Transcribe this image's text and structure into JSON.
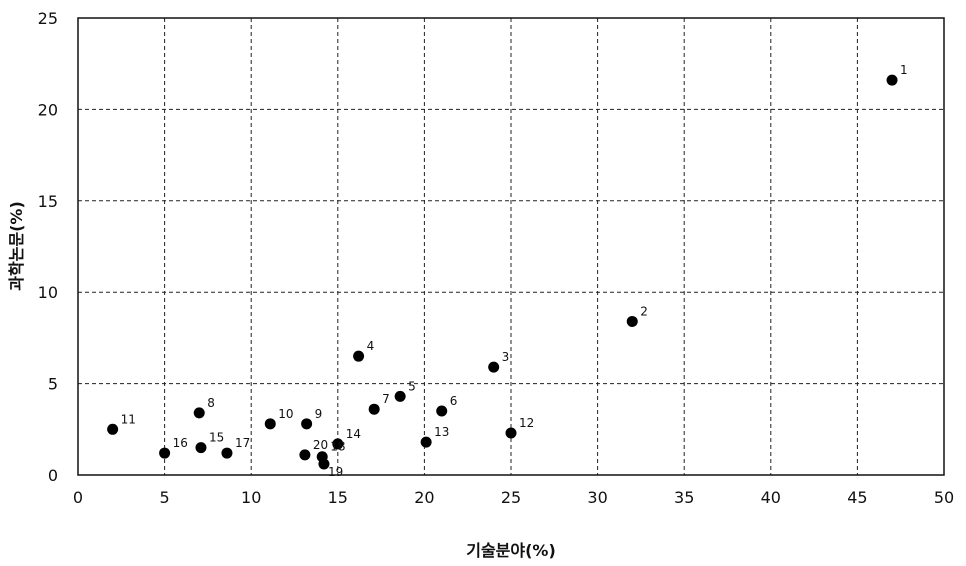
{
  "chart_data": {
    "type": "scatter",
    "title": "",
    "xlabel": "기술분야(%)",
    "ylabel": "과학논문(%)",
    "xlim": [
      0,
      50
    ],
    "ylim": [
      0,
      25
    ],
    "x_ticks": [
      "0",
      "5",
      "10",
      "15",
      "20",
      "25",
      "30",
      "35",
      "40",
      "45",
      "50"
    ],
    "y_ticks": [
      "0",
      "5",
      "10",
      "15",
      "20",
      "25"
    ],
    "grid": true,
    "legend": "none",
    "marker_color": "#000000",
    "points": [
      {
        "label": "1",
        "x": 47.0,
        "y": 21.6
      },
      {
        "label": "2",
        "x": 32.0,
        "y": 8.4
      },
      {
        "label": "3",
        "x": 24.0,
        "y": 5.9
      },
      {
        "label": "4",
        "x": 16.2,
        "y": 6.5
      },
      {
        "label": "5",
        "x": 18.6,
        "y": 4.3
      },
      {
        "label": "6",
        "x": 21.0,
        "y": 3.5
      },
      {
        "label": "7",
        "x": 17.1,
        "y": 3.6
      },
      {
        "label": "8",
        "x": 7.0,
        "y": 3.4
      },
      {
        "label": "9",
        "x": 13.2,
        "y": 2.8
      },
      {
        "label": "10",
        "x": 11.1,
        "y": 2.8
      },
      {
        "label": "11",
        "x": 2.0,
        "y": 2.5
      },
      {
        "label": "12",
        "x": 25.0,
        "y": 2.3
      },
      {
        "label": "13",
        "x": 20.1,
        "y": 1.8
      },
      {
        "label": "14",
        "x": 15.0,
        "y": 1.7
      },
      {
        "label": "15",
        "x": 7.1,
        "y": 1.5
      },
      {
        "label": "16",
        "x": 5.0,
        "y": 1.2
      },
      {
        "label": "17",
        "x": 8.6,
        "y": 1.2
      },
      {
        "label": "18",
        "x": 14.1,
        "y": 1.0
      },
      {
        "label": "19",
        "x": 14.2,
        "y": 0.6
      },
      {
        "label": "20",
        "x": 13.1,
        "y": 1.1
      }
    ]
  }
}
